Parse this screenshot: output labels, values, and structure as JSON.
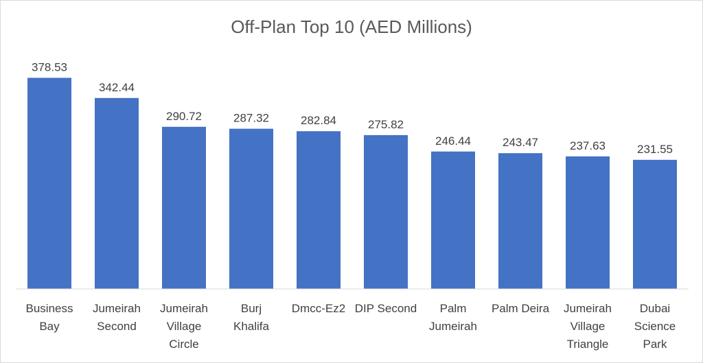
{
  "chart_data": {
    "type": "bar",
    "title": "Off-Plan Top 10 (AED Millions)",
    "xlabel": "",
    "ylabel": "",
    "ylim": [
      0,
      400
    ],
    "grid": false,
    "legend": "none",
    "bar_color": "#4472C4",
    "categories": [
      [
        "Business",
        "Bay"
      ],
      [
        "Jumeirah",
        "Second"
      ],
      [
        "Jumeirah",
        "Village",
        "Circle"
      ],
      [
        "Burj",
        "Khalifa"
      ],
      [
        "Dmcc-Ez2"
      ],
      [
        "DIP Second"
      ],
      [
        "Palm",
        "Jumeirah"
      ],
      [
        "Palm Deira"
      ],
      [
        "Jumeirah",
        "Village",
        "Triangle"
      ],
      [
        "Dubai",
        "Science",
        "Park"
      ]
    ],
    "values": [
      378.53,
      342.44,
      290.72,
      287.32,
      282.84,
      275.82,
      246.44,
      243.47,
      237.63,
      231.55
    ],
    "value_labels": [
      "378.53",
      "342.44",
      "290.72",
      "287.32",
      "282.84",
      "275.82",
      "246.44",
      "243.47",
      "237.63",
      "231.55"
    ]
  }
}
